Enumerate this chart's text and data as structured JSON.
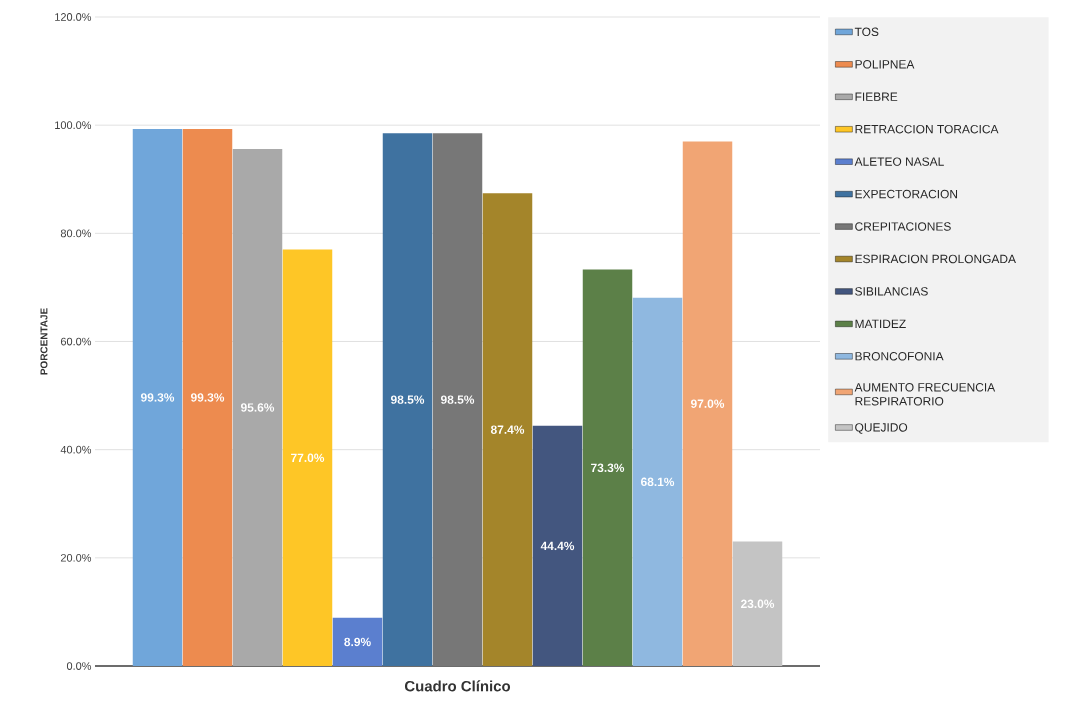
{
  "chart_data": {
    "type": "bar",
    "xlabel": "Cuadro Clínico",
    "ylabel": "PORCENTAJE",
    "categories": [
      null
    ],
    "ylim": [
      0,
      120
    ],
    "yticks": [
      {
        "value": 0,
        "label": "0.0%"
      },
      {
        "value": 20,
        "label": "20.0%"
      },
      {
        "value": 40,
        "label": "40.0%"
      },
      {
        "value": 60,
        "label": "60.0%"
      },
      {
        "value": 80,
        "label": "80.0%"
      },
      {
        "value": 100,
        "label": "100.0%"
      },
      {
        "value": 120,
        "label": "120.0%"
      }
    ],
    "grid": "y",
    "legend": "right",
    "series": [
      {
        "name": "TOS",
        "color": "#70a6da",
        "values": [
          99.3
        ],
        "value_labels": [
          "99.3%"
        ]
      },
      {
        "name": "POLIPNEA",
        "color": "#ed8b4f",
        "values": [
          99.3
        ],
        "value_labels": [
          "99.3%"
        ]
      },
      {
        "name": "FIEBRE",
        "color": "#a9a9a9",
        "values": [
          95.6
        ],
        "value_labels": [
          "95.6%"
        ]
      },
      {
        "name": "RETRACCION TORACICA",
        "color": "#fec626",
        "values": [
          77.0
        ],
        "value_labels": [
          "77.0%"
        ]
      },
      {
        "name": "ALETEO NASAL",
        "color": "#5b7fcf",
        "values": [
          8.9
        ],
        "value_labels": [
          "8.9%"
        ]
      },
      {
        "name": "EXPECTORACION",
        "color": "#3f72a0",
        "values": [
          98.5
        ],
        "value_labels": [
          "98.5%"
        ]
      },
      {
        "name": "CREPITACIONES",
        "color": "#777777",
        "values": [
          98.5
        ],
        "value_labels": [
          "98.5%"
        ]
      },
      {
        "name": "ESPIRACION PROLONGADA",
        "color": "#a4852a",
        "values": [
          87.4
        ],
        "value_labels": [
          "87.4%"
        ]
      },
      {
        "name": "SIBILANCIAS",
        "color": "#43567f",
        "values": [
          44.4
        ],
        "value_labels": [
          "44.4%"
        ]
      },
      {
        "name": "MATIDEZ",
        "color": "#5c8048",
        "values": [
          73.3
        ],
        "value_labels": [
          "73.3%"
        ]
      },
      {
        "name": "BRONCOFONIA",
        "color": "#8fb8e0",
        "values": [
          68.1
        ],
        "value_labels": [
          "68.1%"
        ]
      },
      {
        "name": "AUMENTO FRECUENCIA RESPIRATORIO",
        "color": "#f1a574",
        "values": [
          97.0
        ],
        "value_labels": [
          "97.0%"
        ]
      },
      {
        "name": "QUEJIDO",
        "color": "#c4c4c4",
        "values": [
          23.0
        ],
        "value_labels": [
          "23.0%"
        ]
      }
    ]
  }
}
